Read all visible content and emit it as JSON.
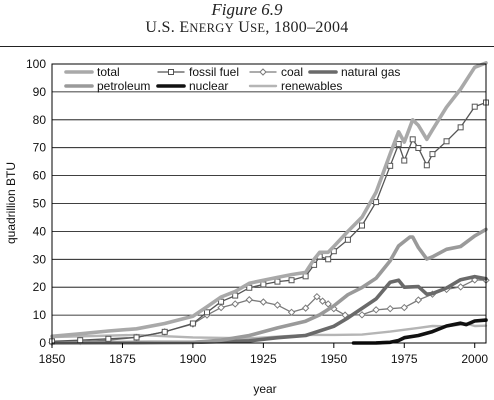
{
  "figure_label": "Figure 6.9",
  "figure_title_parts": {
    "u1": "U.S. E",
    "s1": "NERGY",
    "u2": " U",
    "s2": "SE",
    "u3": ", 1800–2004"
  },
  "chart_data": {
    "type": "line",
    "xlabel": "year",
    "ylabel": "quadrillion BTU",
    "xlim": [
      1850,
      2004
    ],
    "ylim": [
      0,
      100
    ],
    "xticks": [
      1850,
      1875,
      1900,
      1925,
      1950,
      1975,
      2000
    ],
    "yticks": [
      0,
      10,
      20,
      30,
      40,
      50,
      60,
      70,
      80,
      90,
      100
    ],
    "grid": "horizontal",
    "legend_position": "top-left",
    "series": [
      {
        "name": "total",
        "color": "#a9a9a9",
        "style": "thick",
        "points": [
          [
            1850,
            2.4
          ],
          [
            1860,
            3.3
          ],
          [
            1870,
            4.3
          ],
          [
            1880,
            5.1
          ],
          [
            1890,
            7.0
          ],
          [
            1900,
            9.6
          ],
          [
            1905,
            13
          ],
          [
            1910,
            16.5
          ],
          [
            1915,
            18.5
          ],
          [
            1920,
            21.4
          ],
          [
            1925,
            22.5
          ],
          [
            1930,
            23.5
          ],
          [
            1935,
            24.5
          ],
          [
            1940,
            25.3
          ],
          [
            1943,
            30
          ],
          [
            1945,
            32.5
          ],
          [
            1948,
            32.5
          ],
          [
            1950,
            34.6
          ],
          [
            1955,
            40
          ],
          [
            1960,
            45.1
          ],
          [
            1965,
            54
          ],
          [
            1970,
            67.8
          ],
          [
            1973,
            75.7
          ],
          [
            1975,
            72
          ],
          [
            1978,
            80
          ],
          [
            1980,
            78
          ],
          [
            1983,
            73
          ],
          [
            1985,
            76.4
          ],
          [
            1990,
            84.5
          ],
          [
            1995,
            91
          ],
          [
            2000,
            98.8
          ],
          [
            2004,
            100.4
          ]
        ]
      },
      {
        "name": "fossil fuel",
        "color": "#555555",
        "style": "square-marker",
        "points": [
          [
            1850,
            0.6
          ],
          [
            1860,
            1.0
          ],
          [
            1870,
            1.5
          ],
          [
            1880,
            2.0
          ],
          [
            1890,
            4.0
          ],
          [
            1900,
            7.0
          ],
          [
            1905,
            11
          ],
          [
            1910,
            14.8
          ],
          [
            1915,
            17
          ],
          [
            1920,
            19.8
          ],
          [
            1925,
            21
          ],
          [
            1930,
            22
          ],
          [
            1935,
            22.5
          ],
          [
            1940,
            23.9
          ],
          [
            1943,
            28
          ],
          [
            1945,
            31
          ],
          [
            1948,
            30
          ],
          [
            1950,
            32.9
          ],
          [
            1955,
            37
          ],
          [
            1960,
            42.1
          ],
          [
            1965,
            50.5
          ],
          [
            1970,
            63.5
          ],
          [
            1973,
            71.3
          ],
          [
            1975,
            65.4
          ],
          [
            1978,
            73
          ],
          [
            1980,
            69.9
          ],
          [
            1983,
            63.7
          ],
          [
            1985,
            67.7
          ],
          [
            1990,
            72.3
          ],
          [
            1995,
            77.3
          ],
          [
            2000,
            84.7
          ],
          [
            2004,
            86.2
          ]
        ]
      },
      {
        "name": "coal",
        "color": "#7a7a7a",
        "style": "diamond-marker",
        "points": [
          [
            1850,
            0.2
          ],
          [
            1860,
            0.5
          ],
          [
            1870,
            1.0
          ],
          [
            1880,
            2.0
          ],
          [
            1890,
            4.0
          ],
          [
            1900,
            6.8
          ],
          [
            1905,
            10
          ],
          [
            1910,
            12.7
          ],
          [
            1915,
            14
          ],
          [
            1920,
            15.5
          ],
          [
            1925,
            14.7
          ],
          [
            1930,
            13.6
          ],
          [
            1935,
            11
          ],
          [
            1940,
            12.5
          ],
          [
            1944,
            16.6
          ],
          [
            1946,
            15
          ],
          [
            1948,
            14
          ],
          [
            1950,
            12.3
          ],
          [
            1954,
            10
          ],
          [
            1960,
            10.1
          ],
          [
            1965,
            11.9
          ],
          [
            1970,
            12.3
          ],
          [
            1975,
            12.7
          ],
          [
            1980,
            15.4
          ],
          [
            1985,
            17.5
          ],
          [
            1990,
            19.2
          ],
          [
            1995,
            20.1
          ],
          [
            2000,
            22.6
          ],
          [
            2004,
            22.5
          ]
        ]
      },
      {
        "name": "natural gas",
        "color": "#6a6a6a",
        "style": "thick",
        "points": [
          [
            1850,
            0
          ],
          [
            1885,
            0.2
          ],
          [
            1900,
            0.25
          ],
          [
            1910,
            0.5
          ],
          [
            1920,
            0.8
          ],
          [
            1930,
            1.9
          ],
          [
            1940,
            2.7
          ],
          [
            1950,
            6.0
          ],
          [
            1955,
            9.0
          ],
          [
            1960,
            12.4
          ],
          [
            1965,
            15.8
          ],
          [
            1970,
            21.8
          ],
          [
            1973,
            22.5
          ],
          [
            1975,
            20
          ],
          [
            1980,
            20.2
          ],
          [
            1983,
            17.5
          ],
          [
            1985,
            17.7
          ],
          [
            1990,
            19.7
          ],
          [
            1995,
            22.7
          ],
          [
            2000,
            23.8
          ],
          [
            2004,
            23
          ]
        ]
      },
      {
        "name": "petroleum",
        "color": "#9a9a9a",
        "style": "thick",
        "points": [
          [
            1850,
            0
          ],
          [
            1880,
            0
          ],
          [
            1890,
            0.1
          ],
          [
            1900,
            0.2
          ],
          [
            1910,
            1.0
          ],
          [
            1920,
            2.7
          ],
          [
            1930,
            5.4
          ],
          [
            1940,
            7.8
          ],
          [
            1945,
            10.1
          ],
          [
            1950,
            13.3
          ],
          [
            1955,
            17.3
          ],
          [
            1960,
            19.9
          ],
          [
            1965,
            23.2
          ],
          [
            1970,
            29.5
          ],
          [
            1973,
            34.8
          ],
          [
            1977,
            38
          ],
          [
            1978,
            38
          ],
          [
            1980,
            34.2
          ],
          [
            1983,
            30.1
          ],
          [
            1985,
            30.9
          ],
          [
            1990,
            33.6
          ],
          [
            1995,
            34.6
          ],
          [
            2000,
            38.4
          ],
          [
            2004,
            40.7
          ]
        ]
      },
      {
        "name": "nuclear",
        "color": "#111111",
        "style": "thick",
        "points": [
          [
            1957,
            0
          ],
          [
            1965,
            0.04
          ],
          [
            1970,
            0.24
          ],
          [
            1973,
            0.9
          ],
          [
            1975,
            1.9
          ],
          [
            1980,
            2.7
          ],
          [
            1985,
            4.1
          ],
          [
            1990,
            6.1
          ],
          [
            1995,
            7.1
          ],
          [
            1997,
            6.6
          ],
          [
            2000,
            7.9
          ],
          [
            2004,
            8.2
          ]
        ]
      },
      {
        "name": "renewables",
        "color": "#b5b5b5",
        "style": "medium",
        "points": [
          [
            1850,
            2.1
          ],
          [
            1880,
            2.9
          ],
          [
            1900,
            2.0
          ],
          [
            1920,
            1.7
          ],
          [
            1940,
            2.9
          ],
          [
            1950,
            2.9
          ],
          [
            1960,
            3.0
          ],
          [
            1970,
            4.1
          ],
          [
            1980,
            5.4
          ],
          [
            1985,
            6.1
          ],
          [
            1990,
            6.0
          ],
          [
            1995,
            6.6
          ],
          [
            1997,
            7.0
          ],
          [
            2000,
            6.1
          ],
          [
            2004,
            6.2
          ]
        ]
      }
    ]
  }
}
